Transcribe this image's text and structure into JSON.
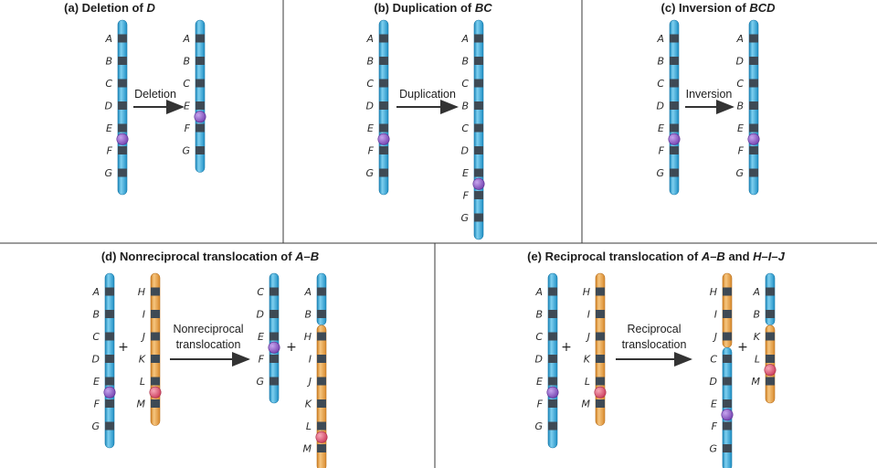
{
  "colors": {
    "blue_chromosome": "#2a9fd2",
    "blue_chromosome_light": "#7fd0f0",
    "orange_chromosome": "#e69a3c",
    "orange_chromosome_light": "#f6c680",
    "band": "#3e4a55",
    "centromere_purple": "#8a5ac4",
    "centromere_pink": "#e0607a",
    "arrow": "#333333"
  },
  "panels": [
    {
      "id": "a",
      "title_prefix": "(a) Deletion of ",
      "title_italic": "D",
      "arrow_label": [
        "Deletion"
      ],
      "before": [
        {
          "color": "blue",
          "genes": [
            "A",
            "B",
            "C",
            "D",
            "E",
            "F",
            "G"
          ],
          "centromere_after": "E"
        }
      ],
      "after": [
        {
          "color": "blue",
          "genes": [
            "A",
            "B",
            "C",
            "E",
            "F",
            "G"
          ],
          "centromere_after": "E"
        }
      ]
    },
    {
      "id": "b",
      "title_prefix": "(b) Duplication of ",
      "title_italic": "BC",
      "arrow_label": [
        "Duplication"
      ],
      "before": [
        {
          "color": "blue",
          "genes": [
            "A",
            "B",
            "C",
            "D",
            "E",
            "F",
            "G"
          ],
          "centromere_after": "E"
        }
      ],
      "after": [
        {
          "color": "blue",
          "genes": [
            "A",
            "B",
            "C",
            "B",
            "C",
            "D",
            "E",
            "F",
            "G"
          ],
          "centromere_after": "E"
        }
      ]
    },
    {
      "id": "c",
      "title_prefix": "(c) Inversion of ",
      "title_italic": "BCD",
      "arrow_label": [
        "Inversion"
      ],
      "before": [
        {
          "color": "blue",
          "genes": [
            "A",
            "B",
            "C",
            "D",
            "E",
            "F",
            "G"
          ],
          "centromere_after": "E"
        }
      ],
      "after": [
        {
          "color": "blue",
          "genes": [
            "A",
            "D",
            "C",
            "B",
            "E",
            "F",
            "G"
          ],
          "centromere_after": "E"
        }
      ]
    },
    {
      "id": "d",
      "title_prefix": "(d) Nonreciprocal translocation of ",
      "title_italic": "A–B",
      "arrow_label": [
        "Nonreciprocal",
        "translocation"
      ],
      "before": [
        {
          "color": "blue",
          "genes": [
            "A",
            "B",
            "C",
            "D",
            "E",
            "F",
            "G"
          ],
          "centromere_after": "E"
        },
        {
          "color": "orange",
          "genes": [
            "H",
            "I",
            "J",
            "K",
            "L",
            "M"
          ],
          "centromere_after": "L"
        }
      ],
      "after": [
        {
          "color": "blue",
          "genes": [
            "C",
            "D",
            "E",
            "F",
            "G"
          ],
          "centromere_after": "E"
        },
        {
          "color": "mixed",
          "genes": [
            "A",
            "B",
            "H",
            "I",
            "J",
            "K",
            "L",
            "M"
          ],
          "centromere_after": "L"
        }
      ]
    },
    {
      "id": "e",
      "title_prefix": "(e) Reciprocal translocation of ",
      "title_italic": "A–B",
      "title_mid": " and ",
      "title_italic2": "H–I–J",
      "arrow_label": [
        "Reciprocal",
        "translocation"
      ],
      "before": [
        {
          "color": "blue",
          "genes": [
            "A",
            "B",
            "C",
            "D",
            "E",
            "F",
            "G"
          ],
          "centromere_after": "E"
        },
        {
          "color": "orange",
          "genes": [
            "H",
            "I",
            "J",
            "K",
            "L",
            "M"
          ],
          "centromere_after": "L"
        }
      ],
      "after": [
        {
          "color": "orange-blue",
          "genes": [
            "H",
            "I",
            "J",
            "C",
            "D",
            "E",
            "F",
            "G"
          ],
          "centromere_after": "E"
        },
        {
          "color": "blue-orange",
          "genes": [
            "A",
            "B",
            "K",
            "L",
            "M"
          ],
          "centromere_after": "L"
        }
      ]
    }
  ],
  "plus_sign": "+"
}
